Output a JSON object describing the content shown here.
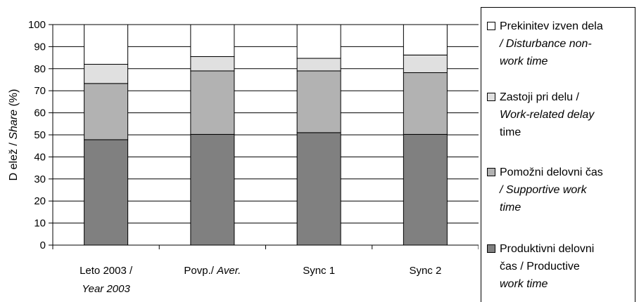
{
  "chart_data": {
    "type": "bar",
    "stacked": true,
    "ylabel_part1": "D elež / ",
    "ylabel_part2": "Share",
    "ylabel_part3": " (%)",
    "ylim": [
      0,
      100
    ],
    "yticks": [
      "0",
      "10",
      "20",
      "30",
      "40",
      "50",
      "60",
      "70",
      "80",
      "90",
      "100"
    ],
    "grid": true,
    "legend_position": "right",
    "categories": [
      {
        "line1": "Leto 2003 /",
        "line2": "Year 2003",
        "line1_plain": "",
        "line1_italic": ""
      },
      {
        "line1": "",
        "line2": "",
        "line1_plain": "Povp./ ",
        "line1_italic": "Aver."
      },
      {
        "line1": "Sync 1",
        "line2": "",
        "line1_plain": "",
        "line1_italic": ""
      },
      {
        "line1": "Sync 2",
        "line2": "",
        "line1_plain": "",
        "line1_italic": ""
      }
    ],
    "series": [
      {
        "name": "Produktivni delovni čas / Productive work time",
        "color": "#808080",
        "values": [
          47.8,
          50.2,
          51.0,
          50.2
        ]
      },
      {
        "name": "Pomožni delovni čas / Supportive work time",
        "color": "#b2b2b2",
        "values": [
          25.5,
          28.8,
          28.0,
          28.0
        ]
      },
      {
        "name": "Zastoji pri delu / Work-related delay time",
        "color": "#e0e0e0",
        "values": [
          8.7,
          6.5,
          5.7,
          8.0
        ]
      },
      {
        "name": "Prekinitev izven dela / Disturbance non-work time",
        "color": "#ffffff",
        "values": [
          18.0,
          14.5,
          15.3,
          13.8
        ]
      }
    ]
  },
  "legend": [
    {
      "line1": "Prekinitev izven dela",
      "line2": "/ Disturbance non-",
      "line3": "work time",
      "color": "#ffffff"
    },
    {
      "line1": "Zastoji pri delu /",
      "line2": "Work-related delay",
      "line3": "time",
      "color": "#e0e0e0"
    },
    {
      "line1": "Pomožni delovni čas",
      "line2": "/ Supportive work",
      "line3": "time",
      "color": "#b2b2b2"
    },
    {
      "line1": "Produktivni delovni",
      "line2": "čas / Productive",
      "line3": "work time",
      "color": "#808080"
    }
  ]
}
